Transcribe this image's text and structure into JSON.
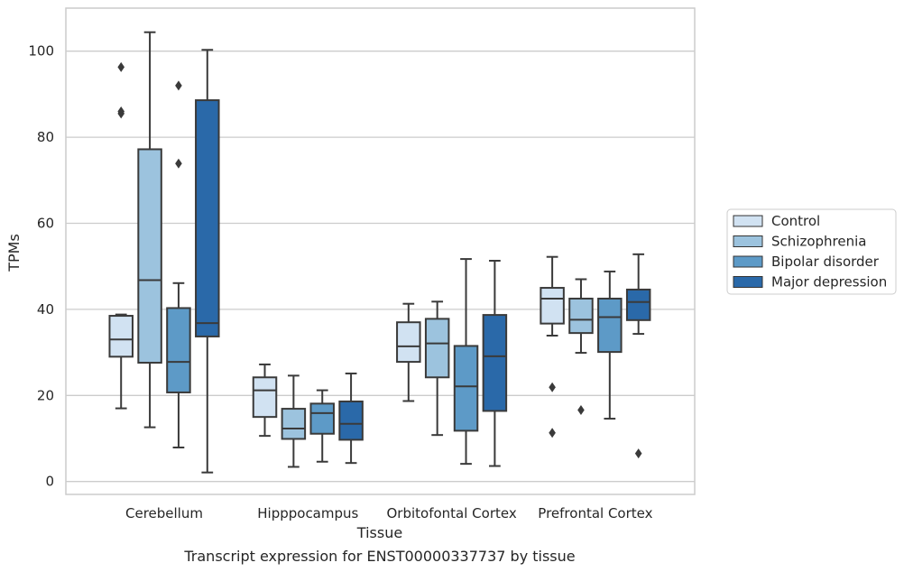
{
  "chart_data": {
    "type": "box",
    "xlabel": "Tissue",
    "ylabel": "TPMs",
    "caption": "Transcript expression for ENST00000337737 by tissue",
    "ylim": [
      -3,
      110
    ],
    "yticks": [
      0,
      20,
      40,
      60,
      80,
      100
    ],
    "grid": "horizontal",
    "legend_position": "right",
    "categories": [
      "Cerebellum",
      "Hipppocampus",
      "Orbitofontal Cortex",
      "Prefrontal Cortex"
    ],
    "series": [
      {
        "name": "Control",
        "color": "#d1e2f2",
        "boxes": [
          {
            "whislo": 17,
            "q1": 29,
            "med": 33,
            "q3": 38.5,
            "whishi": 38.8,
            "fliers": [
              86,
              85.5,
              96.3
            ]
          },
          {
            "whislo": 10.6,
            "q1": 15,
            "med": 21.2,
            "q3": 24.2,
            "whishi": 27.2,
            "fliers": []
          },
          {
            "whislo": 18.7,
            "q1": 27.8,
            "med": 31.4,
            "q3": 37,
            "whishi": 41.3,
            "fliers": []
          },
          {
            "whislo": 33.9,
            "q1": 36.7,
            "med": 42.5,
            "q3": 45,
            "whishi": 52.2,
            "fliers": [
              21.9,
              11.3
            ]
          }
        ]
      },
      {
        "name": "Schizophrenia",
        "color": "#9cc3de",
        "boxes": [
          {
            "whislo": 12.6,
            "q1": 27.6,
            "med": 46.8,
            "q3": 77.2,
            "whishi": 104.4,
            "fliers": []
          },
          {
            "whislo": 3.4,
            "q1": 9.9,
            "med": 12.3,
            "q3": 16.9,
            "whishi": 24.6,
            "fliers": []
          },
          {
            "whislo": 10.8,
            "q1": 24.2,
            "med": 32.1,
            "q3": 37.8,
            "whishi": 41.8,
            "fliers": []
          },
          {
            "whislo": 29.9,
            "q1": 34.5,
            "med": 37.6,
            "q3": 42.5,
            "whishi": 47,
            "fliers": [
              16.6
            ]
          }
        ]
      },
      {
        "name": "Bipolar disorder",
        "color": "#5d9ac7",
        "boxes": [
          {
            "whislo": 7.9,
            "q1": 20.7,
            "med": 27.8,
            "q3": 40.3,
            "whishi": 46.1,
            "fliers": [
              92,
              73.9
            ]
          },
          {
            "whislo": 4.6,
            "q1": 11.1,
            "med": 15.9,
            "q3": 18.1,
            "whishi": 21.2,
            "fliers": []
          },
          {
            "whislo": 4.1,
            "q1": 11.8,
            "med": 22.1,
            "q3": 31.5,
            "whishi": 51.7,
            "fliers": []
          },
          {
            "whislo": 14.6,
            "q1": 30.1,
            "med": 38.2,
            "q3": 42.5,
            "whishi": 48.8,
            "fliers": []
          }
        ]
      },
      {
        "name": "Major depression",
        "color": "#2a69a9",
        "boxes": [
          {
            "whislo": 2.1,
            "q1": 33.7,
            "med": 36.8,
            "q3": 88.6,
            "whishi": 100.3,
            "fliers": []
          },
          {
            "whislo": 4.3,
            "q1": 9.7,
            "med": 13.4,
            "q3": 18.6,
            "whishi": 25.1,
            "fliers": []
          },
          {
            "whislo": 3.6,
            "q1": 16.4,
            "med": 29.1,
            "q3": 38.7,
            "whishi": 51.3,
            "fliers": []
          },
          {
            "whislo": 34.3,
            "q1": 37.5,
            "med": 41.7,
            "q3": 44.6,
            "whishi": 52.8,
            "fliers": [
              6.5
            ]
          }
        ]
      }
    ]
  }
}
